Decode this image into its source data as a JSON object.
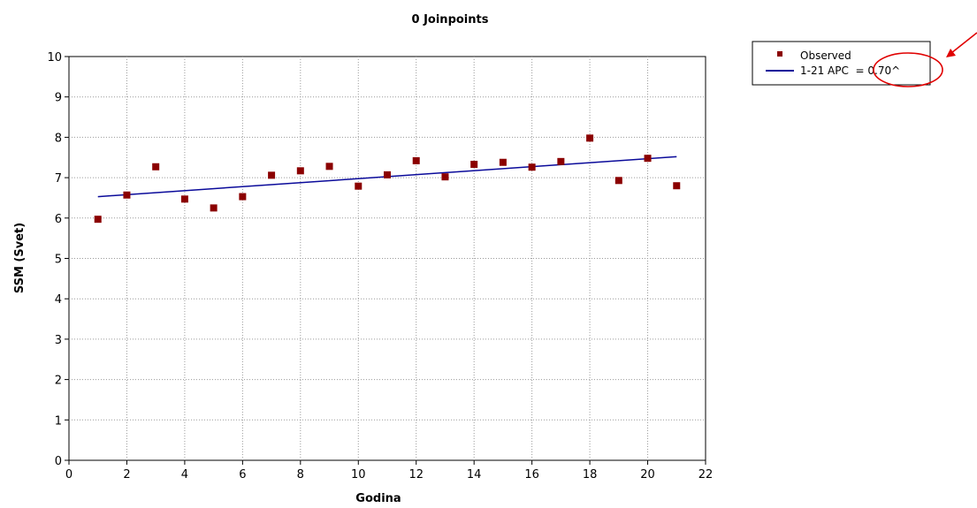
{
  "chart_data": {
    "type": "scatter",
    "title": "0 Joinpoints",
    "xlabel": "Godina",
    "ylabel": "SSM (Svet)",
    "xlim": [
      0,
      22
    ],
    "ylim": [
      0,
      10
    ],
    "x_ticks": [
      0,
      2,
      4,
      6,
      8,
      10,
      12,
      14,
      16,
      18,
      20,
      22
    ],
    "y_ticks": [
      0,
      1,
      2,
      3,
      4,
      5,
      6,
      7,
      8,
      9,
      10
    ],
    "grid": true,
    "legend_position": "top-right, outside plot",
    "series": [
      {
        "name": "Observed",
        "kind": "scatter",
        "marker": "square",
        "color": "#8b0000",
        "x": [
          1,
          2,
          3,
          4,
          5,
          6,
          7,
          8,
          9,
          10,
          11,
          12,
          13,
          14,
          15,
          16,
          17,
          18,
          19,
          20,
          21
        ],
        "y": [
          5.97,
          6.57,
          7.27,
          6.47,
          6.25,
          6.53,
          7.06,
          7.17,
          7.28,
          6.79,
          7.07,
          7.42,
          7.02,
          7.33,
          7.38,
          7.26,
          7.4,
          7.98,
          6.93,
          7.48,
          6.8
        ]
      },
      {
        "name": "1-21 APC  = 0.70^",
        "kind": "line",
        "color": "#0a0a9a",
        "x": [
          1,
          21
        ],
        "y": [
          6.53,
          7.52
        ]
      }
    ],
    "annotations": [
      {
        "type": "circle-highlight",
        "target": "legend APC value",
        "color": "#e00000"
      },
      {
        "type": "arrow",
        "target": "legend APC value",
        "color": "#e00000"
      }
    ]
  }
}
